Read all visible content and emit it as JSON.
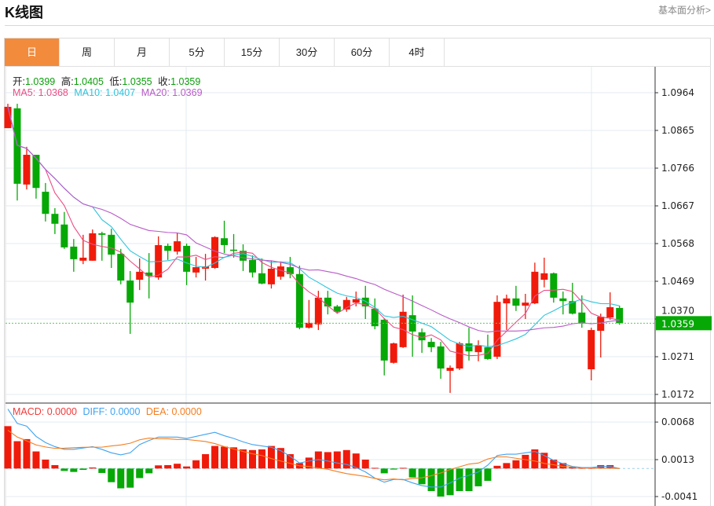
{
  "header": {
    "title": "K线图",
    "link": "基本面分析>"
  },
  "tabs": [
    {
      "label": "日",
      "active": true
    },
    {
      "label": "周"
    },
    {
      "label": "月"
    },
    {
      "label": "5分"
    },
    {
      "label": "15分"
    },
    {
      "label": "30分"
    },
    {
      "label": "60分"
    },
    {
      "label": "4时"
    }
  ],
  "ohlc_legend": {
    "open_label": "开:",
    "open": "1.0399",
    "high_label": "高:",
    "high": "1.0405",
    "low_label": "低:",
    "low": "1.0355",
    "close_label": "收:",
    "close": "1.0359"
  },
  "ma_legend": {
    "ma5": "MA5: 1.0368",
    "ma10": "MA10: 1.0407",
    "ma20": "MA20: 1.0369"
  },
  "macd_legend": {
    "macd": "MACD: 0.0000",
    "diff": "DIFF: 0.0000",
    "dea": "DEA: 0.0000"
  },
  "current_price": "1.0359",
  "colors": {
    "up": "#f01a0a",
    "down": "#06a806",
    "ma5": "#ec4d84",
    "ma10": "#2ec4dc",
    "ma20": "#b95bc8",
    "diff": "#3fa3f0",
    "dea": "#f57d1f",
    "accent": "#f28b3c"
  },
  "chart_data": {
    "type": "candlestick",
    "price_ticks": [
      "1.0964",
      "1.0865",
      "1.0766",
      "1.0667",
      "1.0568",
      "1.0469",
      "1.0370",
      "1.0271",
      "1.0172"
    ],
    "price_range": [
      1.0172,
      1.0964
    ],
    "macd_ticks": [
      "0.0068",
      "0.0013",
      "-0.0041"
    ],
    "candles_ohlc": [
      [
        1.0871,
        1.0935,
        1.0871,
        1.0927
      ],
      [
        1.0923,
        1.0935,
        1.0681,
        1.0725
      ],
      [
        1.0723,
        1.0822,
        1.071,
        1.0801
      ],
      [
        1.0801,
        1.0801,
        1.0686,
        1.0714
      ],
      [
        1.0704,
        1.0727,
        1.0626,
        1.0646
      ],
      [
        1.0646,
        1.0661,
        1.0593,
        1.062
      ],
      [
        1.0618,
        1.0651,
        1.0554,
        1.0558
      ],
      [
        1.056,
        1.058,
        1.0494,
        1.0527
      ],
      [
        1.0523,
        1.0591,
        1.0514,
        1.0531
      ],
      [
        1.0523,
        1.0605,
        1.0523,
        1.0595
      ],
      [
        1.0595,
        1.0599,
        1.0523,
        1.0591
      ],
      [
        1.0591,
        1.0607,
        1.0504,
        1.0539
      ],
      [
        1.0541,
        1.0554,
        1.0461,
        1.0471
      ],
      [
        1.0471,
        1.0496,
        1.0331,
        1.0413
      ],
      [
        1.0473,
        1.0529,
        1.0446,
        1.0494
      ],
      [
        1.0492,
        1.0543,
        1.0424,
        1.0483
      ],
      [
        1.0479,
        1.0587,
        1.0473,
        1.0564
      ],
      [
        1.0562,
        1.0568,
        1.0525,
        1.0549
      ],
      [
        1.0547,
        1.0595,
        1.0539,
        1.0574
      ],
      [
        1.0562,
        1.0568,
        1.0459,
        1.0494
      ],
      [
        1.0492,
        1.0533,
        1.0479,
        1.0506
      ],
      [
        1.0502,
        1.0541,
        1.0471,
        1.0508
      ],
      [
        1.0504,
        1.0587,
        1.0502,
        1.0585
      ],
      [
        1.0582,
        1.0628,
        1.0543,
        1.0564
      ],
      [
        1.0552,
        1.0593,
        1.0531,
        1.0549
      ],
      [
        1.0549,
        1.0566,
        1.0496,
        1.0523
      ],
      [
        1.0525,
        1.0537,
        1.0479,
        1.0492
      ],
      [
        1.049,
        1.0529,
        1.0461,
        1.0463
      ],
      [
        1.0461,
        1.0523,
        1.045,
        1.0502
      ],
      [
        1.0481,
        1.0521,
        1.0473,
        1.0508
      ],
      [
        1.0506,
        1.0533,
        1.0477,
        1.0488
      ],
      [
        1.0488,
        1.051,
        1.0343,
        1.0347
      ],
      [
        1.0347,
        1.042,
        1.0345,
        1.036
      ],
      [
        1.0356,
        1.0444,
        1.0341,
        1.0426
      ],
      [
        1.0426,
        1.0444,
        1.0382,
        1.0403
      ],
      [
        1.0403,
        1.0407,
        1.0384,
        1.0389
      ],
      [
        1.0395,
        1.0428,
        1.0389,
        1.042
      ],
      [
        1.0413,
        1.0442,
        1.0403,
        1.0422
      ],
      [
        1.0426,
        1.0457,
        1.037,
        1.0403
      ],
      [
        1.0397,
        1.0424,
        1.0343,
        1.0351
      ],
      [
        1.0368,
        1.0372,
        1.0222,
        1.0261
      ],
      [
        1.0255,
        1.0308,
        1.0253,
        1.0306
      ],
      [
        1.0296,
        1.0434,
        1.0294,
        1.0389
      ],
      [
        1.038,
        1.0432,
        1.0271,
        1.0337
      ],
      [
        1.0335,
        1.0345,
        1.0281,
        1.0314
      ],
      [
        1.031,
        1.032,
        1.0283,
        1.0296
      ],
      [
        1.0298,
        1.031,
        1.0213,
        1.024
      ],
      [
        1.0234,
        1.0248,
        1.0176,
        1.0242
      ],
      [
        1.024,
        1.031,
        1.0236,
        1.0306
      ],
      [
        1.0306,
        1.0347,
        1.0261,
        1.0285
      ],
      [
        1.0283,
        1.0314,
        1.0259,
        1.03
      ],
      [
        1.0296,
        1.0329,
        1.0263,
        1.0265
      ],
      [
        1.0271,
        1.0432,
        1.0265,
        1.0415
      ],
      [
        1.0411,
        1.0434,
        1.0341,
        1.0424
      ],
      [
        1.0424,
        1.0457,
        1.0391,
        1.0405
      ],
      [
        1.0405,
        1.0436,
        1.037,
        1.0413
      ],
      [
        1.0411,
        1.0518,
        1.0409,
        1.0494
      ],
      [
        1.0473,
        1.0531,
        1.0453,
        1.049
      ],
      [
        1.049,
        1.0492,
        1.0413,
        1.0426
      ],
      [
        1.0424,
        1.0442,
        1.0382,
        1.0417
      ],
      [
        1.0417,
        1.0465,
        1.0382,
        1.0384
      ],
      [
        1.0387,
        1.0432,
        1.0347,
        1.0358
      ],
      [
        1.0238,
        1.0347,
        1.0209,
        1.0341
      ],
      [
        1.0339,
        1.0384,
        1.0269,
        1.0376
      ],
      [
        1.0374,
        1.044,
        1.0368,
        1.0401
      ],
      [
        1.0399,
        1.0405,
        1.0355,
        1.0359
      ]
    ],
    "macd_hist": [
      0.0062,
      0.004,
      0.0043,
      0.0025,
      0.0013,
      0.0005,
      -0.00035,
      -0.0005,
      -0.0002,
      0.00015,
      -0.00065,
      -0.002,
      -0.0029,
      -0.0028,
      -0.0014,
      -0.0007,
      0.00046,
      0.0005,
      0.0007,
      0.0003,
      0.0012,
      0.0021,
      0.0033,
      0.0032,
      0.0031,
      0.0028,
      0.0027,
      0.0028,
      0.0033,
      0.003,
      0.0021,
      0.0008,
      0.0016,
      0.0025,
      0.0024,
      0.0025,
      0.0027,
      0.0022,
      0.0013,
      0.0001,
      -0.0007,
      -0.00015,
      0.0001,
      -0.0013,
      -0.0023,
      -0.0033,
      -0.0041,
      -0.0039,
      -0.0033,
      -0.0033,
      -0.0026,
      -0.0018,
      0.0004,
      0.0008,
      0.0012,
      0.002,
      0.0028,
      0.0023,
      0.0013,
      0.0008,
      0.0002,
      0.0001,
      0.0001,
      0.0005,
      0.0005,
      0
    ],
    "diff": [
      0.0087,
      0.0066,
      0.0062,
      0.0047,
      0.0038,
      0.0032,
      0.0028,
      0.0028,
      0.003,
      0.0032,
      0.0028,
      0.0023,
      0.002,
      0.0023,
      0.0035,
      0.0041,
      0.0046,
      0.0046,
      0.0046,
      0.0044,
      0.0047,
      0.005,
      0.0053,
      0.0048,
      0.0044,
      0.0039,
      0.0035,
      0.0033,
      0.0031,
      0.0026,
      0.0018,
      0.0008,
      0.0011,
      0.0013,
      0.0011,
      0.0008,
      0.0006,
      0.00015,
      -0.0005,
      -0.0014,
      -0.002,
      -0.0016,
      -0.0016,
      -0.0021,
      -0.0025,
      -0.0027,
      -0.0027,
      -0.0021,
      -0.0014,
      -0.001,
      -0.0005,
      0.0005,
      0.0019,
      0.0021,
      0.0021,
      0.0023,
      0.0025,
      0.0019,
      0.0012,
      0.0007,
      0.0003,
      0.00015,
      0.00015,
      0.0003,
      0.0003,
      0
    ]
  }
}
